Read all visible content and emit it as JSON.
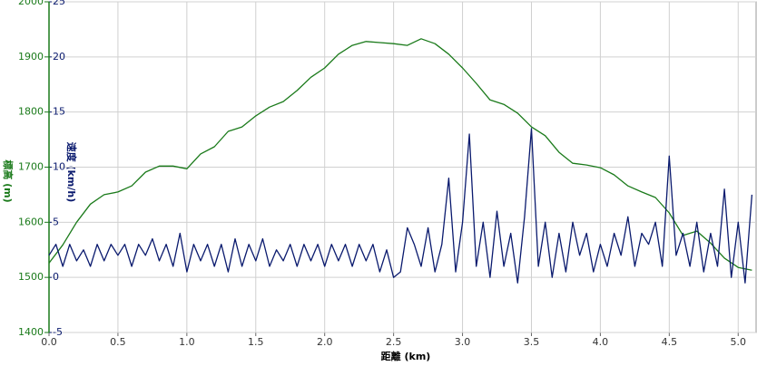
{
  "chart_data": {
    "type": "line",
    "xlabel": "距離 (km)",
    "ylabel": "標高 (m)",
    "y2label": "速度 (km/h)",
    "xlim": [
      0,
      5.13
    ],
    "xticks": [
      {
        "value": 0,
        "label": "0.0"
      },
      0.5,
      {
        "value": 1,
        "label": "1.0"
      },
      1.5,
      {
        "value": 2,
        "label": "2.0"
      },
      2.5,
      {
        "value": 3,
        "label": "3.0"
      },
      3.5,
      {
        "value": 4,
        "label": "4.0"
      },
      4.5,
      {
        "value": 5,
        "label": "5.0"
      }
    ],
    "ylim": [
      1400,
      2000
    ],
    "yticks": [
      1400,
      1500,
      1600,
      1700,
      1800,
      1900,
      2000
    ],
    "y2lim": [
      -5,
      25
    ],
    "y2ticks": [
      -5,
      0,
      5,
      10,
      15,
      20,
      25
    ],
    "grid": true,
    "series": [
      {
        "color": "#1a7a1a",
        "axis": "y",
        "x": [
          0,
          0.1,
          0.2,
          0.3,
          0.4,
          0.5,
          0.6,
          0.7,
          0.8,
          0.9,
          1,
          1.1,
          1.2,
          1.3,
          1.4,
          1.5,
          1.6,
          1.7,
          1.8,
          1.9,
          2,
          2.1,
          2.2,
          2.3,
          2.4,
          2.5,
          2.6,
          2.7,
          2.8,
          2.9,
          3,
          3.1,
          3.2,
          3.3,
          3.4,
          3.5,
          3.6,
          3.7,
          3.8,
          3.9,
          4,
          4.1,
          4.2,
          4.3,
          4.4,
          4.5,
          4.6,
          4.7,
          4.8,
          4.9,
          5,
          5.1
        ],
        "values": [
          1526,
          1559,
          1600,
          1633,
          1650,
          1655,
          1666,
          1691,
          1702,
          1702,
          1697,
          1724,
          1737,
          1765,
          1773,
          1793,
          1809,
          1819,
          1839,
          1863,
          1880,
          1905,
          1921,
          1928,
          1926,
          1924,
          1921,
          1933,
          1924,
          1905,
          1880,
          1852,
          1822,
          1814,
          1798,
          1773,
          1757,
          1727,
          1707,
          1704,
          1699,
          1686,
          1666,
          1655,
          1645,
          1617,
          1576,
          1584,
          1562,
          1535,
          1518,
          1513
        ]
      },
      {
        "color": "#0a1a6e",
        "axis": "y2",
        "x": [
          0,
          0.05,
          0.1,
          0.15,
          0.2,
          0.25,
          0.3,
          0.35,
          0.4,
          0.45,
          0.5,
          0.55,
          0.6,
          0.65,
          0.7,
          0.75,
          0.8,
          0.85,
          0.9,
          0.95,
          1,
          1.05,
          1.1,
          1.15,
          1.2,
          1.25,
          1.3,
          1.35,
          1.4,
          1.45,
          1.5,
          1.55,
          1.6,
          1.65,
          1.7,
          1.75,
          1.8,
          1.85,
          1.9,
          1.95,
          2,
          2.05,
          2.1,
          2.15,
          2.2,
          2.25,
          2.3,
          2.35,
          2.4,
          2.45,
          2.5,
          2.55,
          2.6,
          2.65,
          2.7,
          2.75,
          2.8,
          2.85,
          2.9,
          2.95,
          3,
          3.05,
          3.1,
          3.15,
          3.2,
          3.25,
          3.3,
          3.35,
          3.4,
          3.45,
          3.5,
          3.55,
          3.6,
          3.65,
          3.7,
          3.75,
          3.8,
          3.85,
          3.9,
          3.95,
          4,
          4.05,
          4.1,
          4.15,
          4.2,
          4.25,
          4.3,
          4.35,
          4.4,
          4.45,
          4.5,
          4.55,
          4.6,
          4.65,
          4.7,
          4.75,
          4.8,
          4.85,
          4.9,
          4.95,
          5,
          5.05,
          5.1
        ],
        "values": [
          2,
          3,
          1,
          3,
          1.5,
          2.5,
          1,
          3,
          1.5,
          3,
          2,
          3,
          1,
          3,
          2,
          3.5,
          1.5,
          3,
          1,
          4,
          0.5,
          3,
          1.5,
          3,
          1,
          3,
          0.5,
          3.5,
          1,
          3,
          1.5,
          3.5,
          1,
          2.5,
          1.5,
          3,
          1,
          3,
          1.5,
          3,
          1,
          3,
          1.5,
          3,
          1,
          3,
          1.5,
          3,
          0.5,
          2.5,
          0,
          0.5,
          4.5,
          3,
          1,
          4.5,
          0.5,
          3,
          9,
          0.5,
          5,
          13,
          1,
          5,
          0,
          6,
          1,
          4,
          -0.5,
          5.5,
          13.5,
          1,
          5,
          0,
          4,
          0.5,
          5,
          2,
          4,
          0.5,
          3,
          1,
          4,
          2,
          5.5,
          1,
          4,
          3,
          5,
          1,
          11,
          2,
          4,
          1,
          5,
          0.5,
          4,
          1,
          8,
          0,
          5,
          -0.5,
          7.5
        ]
      }
    ]
  }
}
